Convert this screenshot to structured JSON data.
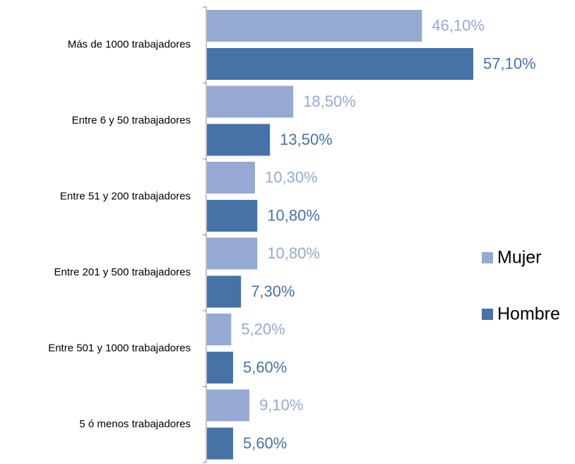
{
  "chart_data": {
    "type": "bar",
    "orientation": "horizontal",
    "categories": [
      "Más de 1000 trabajadores",
      "Entre 6 y 50 trabajadores",
      "Entre 51 y 200 trabajadores",
      "Entre 201 y 500 trabajadores",
      "Entre 501 y 1000 trabajadores",
      "5 ó menos trabajadores"
    ],
    "series": [
      {
        "name": "Mujer",
        "color": "#95a9d3",
        "values": [
          46.1,
          18.5,
          10.3,
          10.8,
          5.2,
          9.1
        ],
        "value_labels": [
          "46,10%",
          "18,50%",
          "10,30%",
          "10,80%",
          "5,20%",
          "9,10%"
        ]
      },
      {
        "name": "Hombre",
        "color": "#4672a8",
        "values": [
          57.1,
          13.5,
          10.8,
          7.3,
          5.6,
          5.6
        ],
        "value_labels": [
          "57,10%",
          "13,50%",
          "10,80%",
          "7,30%",
          "5,60%",
          "5,60%"
        ]
      }
    ],
    "legend": "right"
  }
}
